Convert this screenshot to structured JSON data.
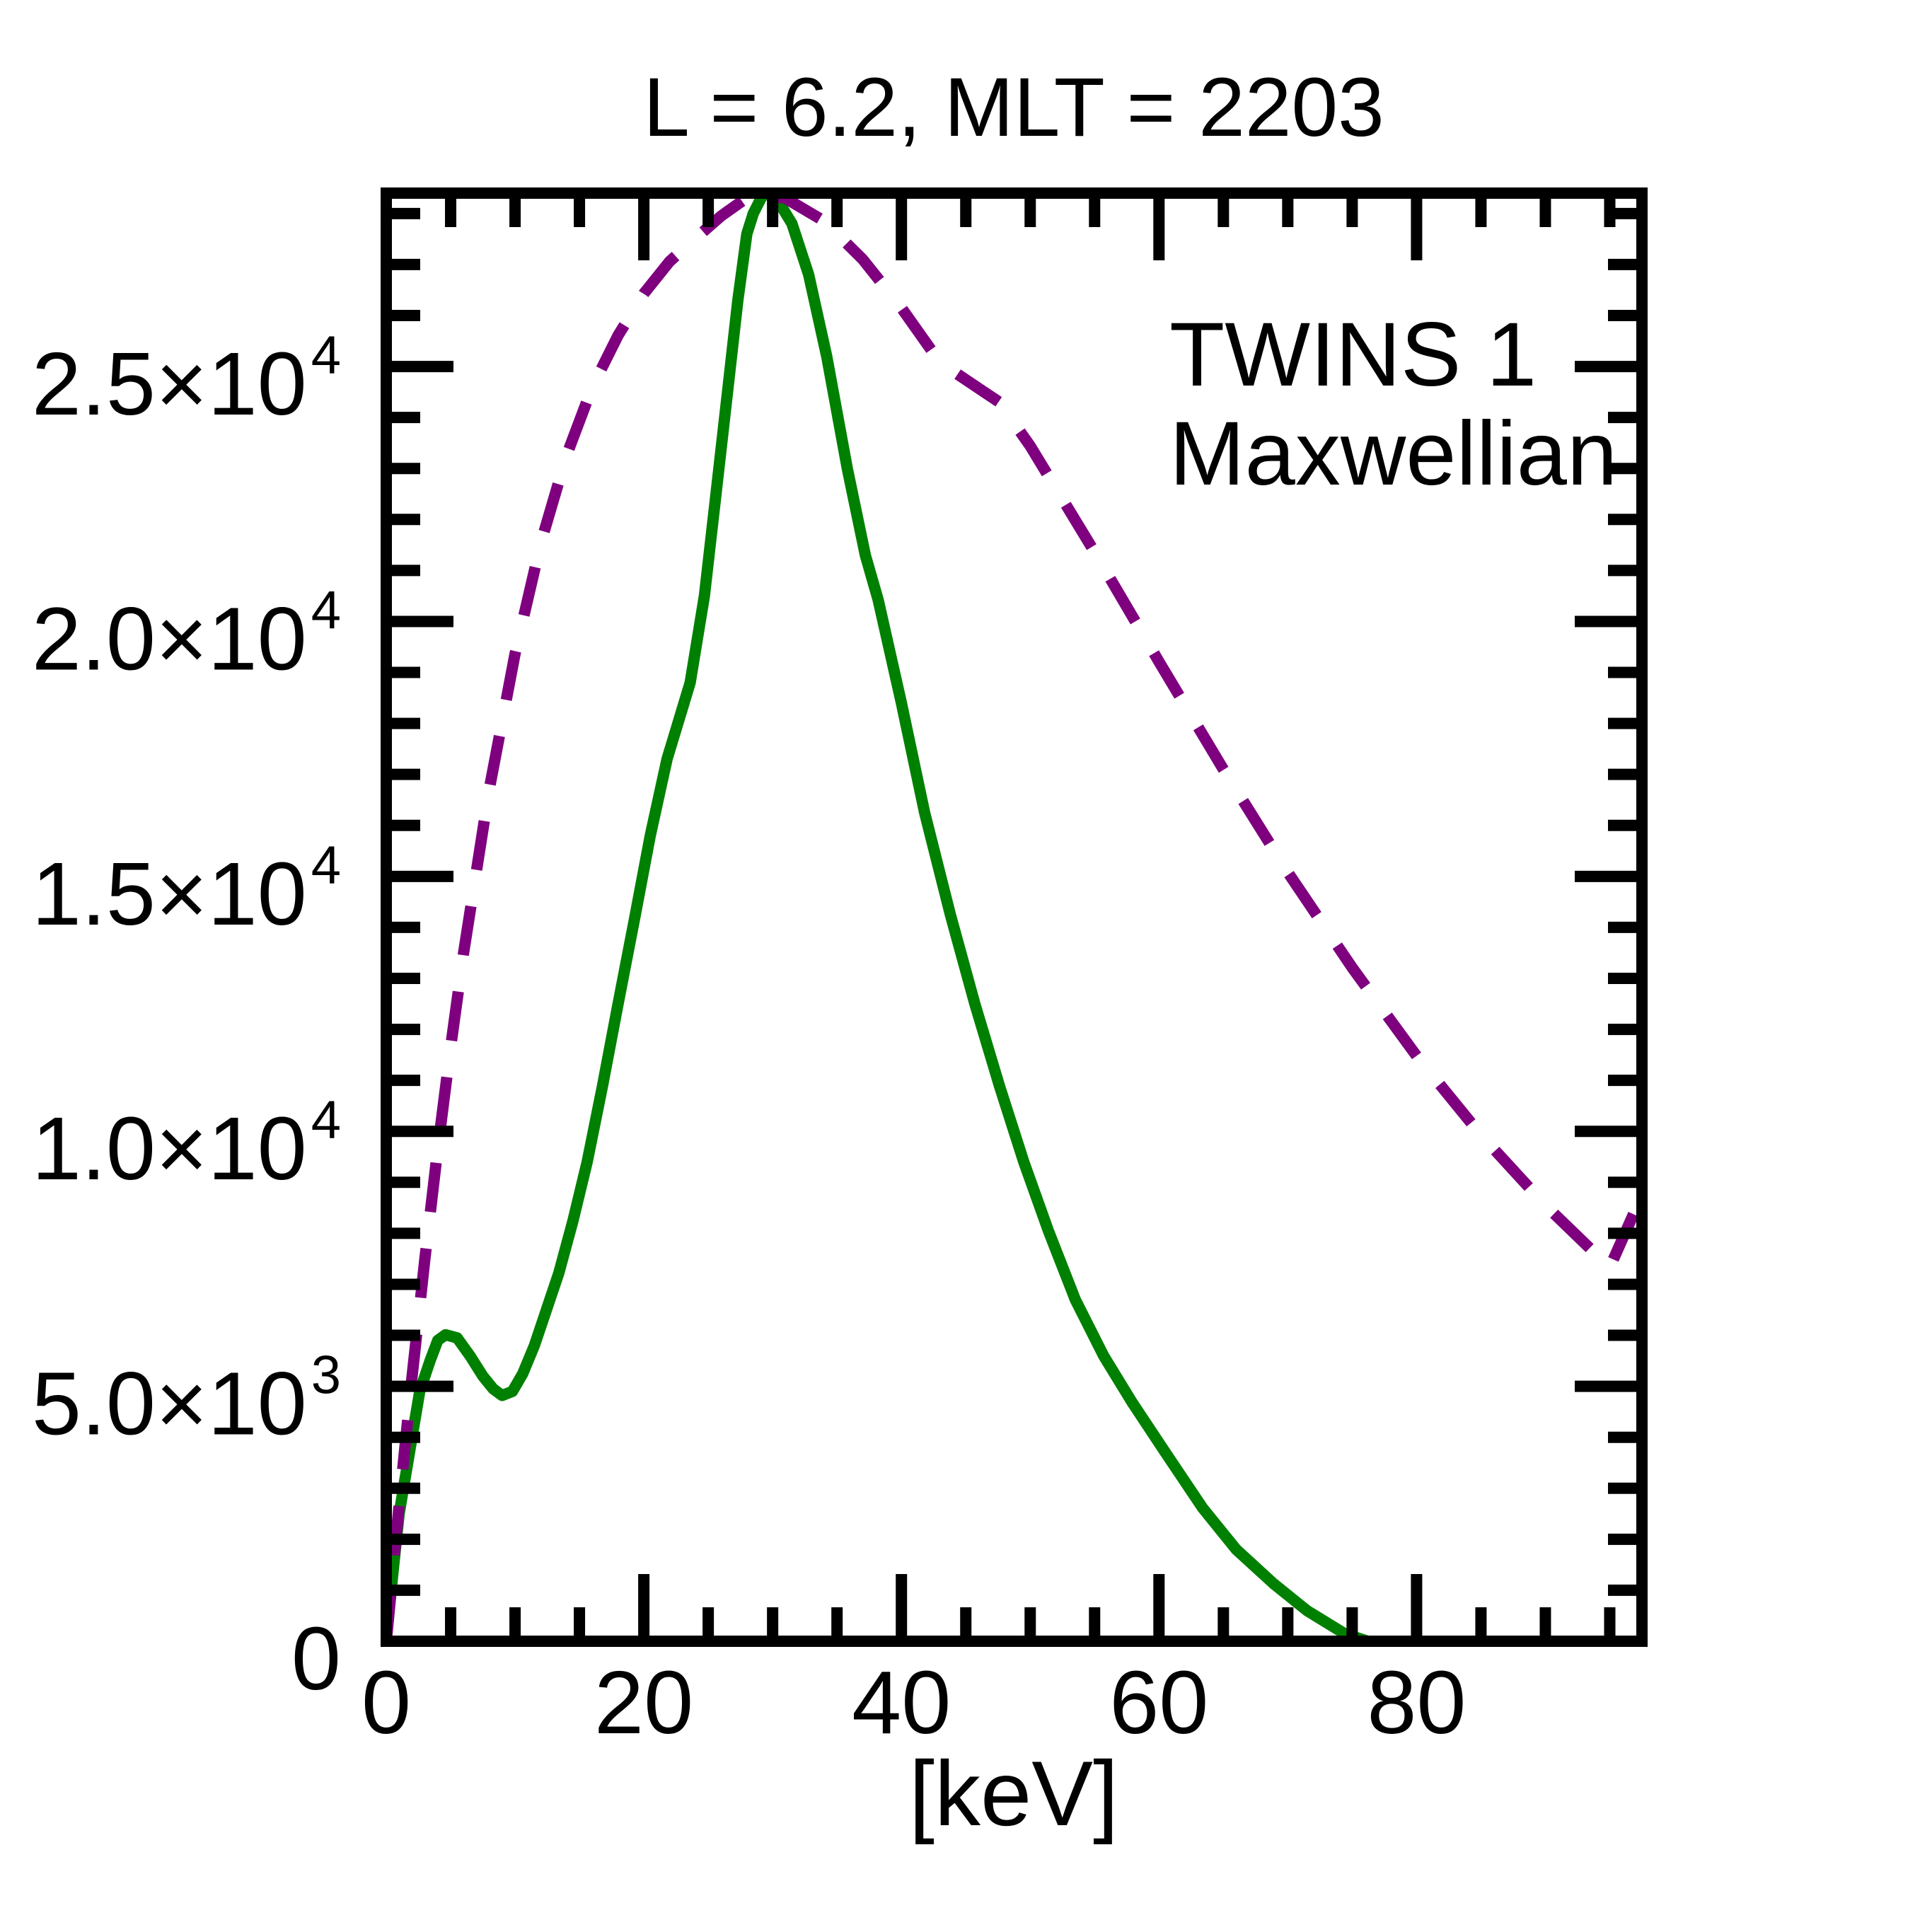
{
  "chart_data": {
    "type": "line",
    "title": "L =  6.2, MLT = 2203",
    "xlabel": "[keV]",
    "ylabel": "",
    "xlim": [
      0,
      97.5
    ],
    "ylim": [
      0,
      28400
    ],
    "grid": false,
    "legend_position": "top-right",
    "x_ticks": {
      "major": [
        0,
        20,
        40,
        60,
        80
      ],
      "major_labels": [
        "0",
        "20",
        "40",
        "60",
        "80"
      ],
      "minor_step": 5
    },
    "y_ticks": {
      "major": [
        0,
        5000,
        10000,
        15000,
        20000,
        25000
      ],
      "major_labels": [
        {
          "mantissa": "0",
          "exponent": ""
        },
        {
          "mantissa": "5.0×10",
          "exponent": "3"
        },
        {
          "mantissa": "1.0×10",
          "exponent": "4"
        },
        {
          "mantissa": "1.5×10",
          "exponent": "4"
        },
        {
          "mantissa": "2.0×10",
          "exponent": "4"
        },
        {
          "mantissa": "2.5×10",
          "exponent": "4"
        }
      ],
      "minor_step": 1000
    },
    "series": [
      {
        "name": "TWINS 1",
        "color": "#008000",
        "style": "solid",
        "x": [
          0,
          0.5,
          1,
          1.9,
          2.6,
          3.4,
          4.0,
          4.6,
          5.5,
          6.5,
          7.5,
          8.3,
          9.0,
          9.8,
          10.6,
          11.5,
          12.5,
          13.4,
          14.5,
          15.6,
          16.8,
          18.0,
          19.3,
          20.5,
          21.8,
          23.0,
          23.6,
          24.7,
          25.6,
          26.5,
          27.3,
          28.0,
          28.5,
          29.3,
          30.3,
          31.5,
          32.8,
          34.2,
          35.8,
          37.2,
          38.2,
          40.0,
          41.8,
          43.8,
          45.7,
          47.6,
          49.5,
          51.4,
          53.5,
          55.7,
          57.9,
          60.5,
          63.4,
          66.0,
          68.9,
          71.5,
          74.4,
          76.2
        ],
        "y": [
          0,
          1300,
          2500,
          3850,
          4900,
          5500,
          5900,
          6010,
          5950,
          5600,
          5200,
          4950,
          4820,
          4900,
          5250,
          5800,
          6550,
          7220,
          8250,
          9400,
          10900,
          12500,
          14200,
          15800,
          17300,
          18300,
          18800,
          20500,
          22500,
          24500,
          26300,
          27600,
          28000,
          28400,
          28300,
          27800,
          26800,
          25200,
          23000,
          21300,
          20420,
          18400,
          16250,
          14250,
          12500,
          10900,
          9400,
          8060,
          6700,
          5600,
          4690,
          3700,
          2610,
          1800,
          1130,
          600,
          150,
          0
        ]
      },
      {
        "name": "Maxwellian",
        "color": "#7f007f",
        "style": "dashed",
        "x": [
          0,
          1,
          2,
          3,
          4,
          5,
          6,
          8,
          10,
          12,
          14,
          16,
          18,
          20,
          22,
          24,
          26,
          28.5,
          31,
          34,
          37,
          40,
          43,
          47.6,
          50,
          55,
          60,
          65,
          70,
          75,
          80,
          85,
          90,
          95,
          97.5
        ],
        "y": [
          0,
          2680,
          5180,
          7500,
          9660,
          11650,
          13490,
          16710,
          19370,
          21540,
          23260,
          24600,
          25610,
          26430,
          27060,
          27510,
          27950,
          28400,
          28300,
          27850,
          27100,
          26150,
          25080,
          24300,
          23440,
          21360,
          19210,
          17100,
          15080,
          13210,
          11480,
          9930,
          8550,
          7330,
          8750
        ]
      }
    ]
  }
}
